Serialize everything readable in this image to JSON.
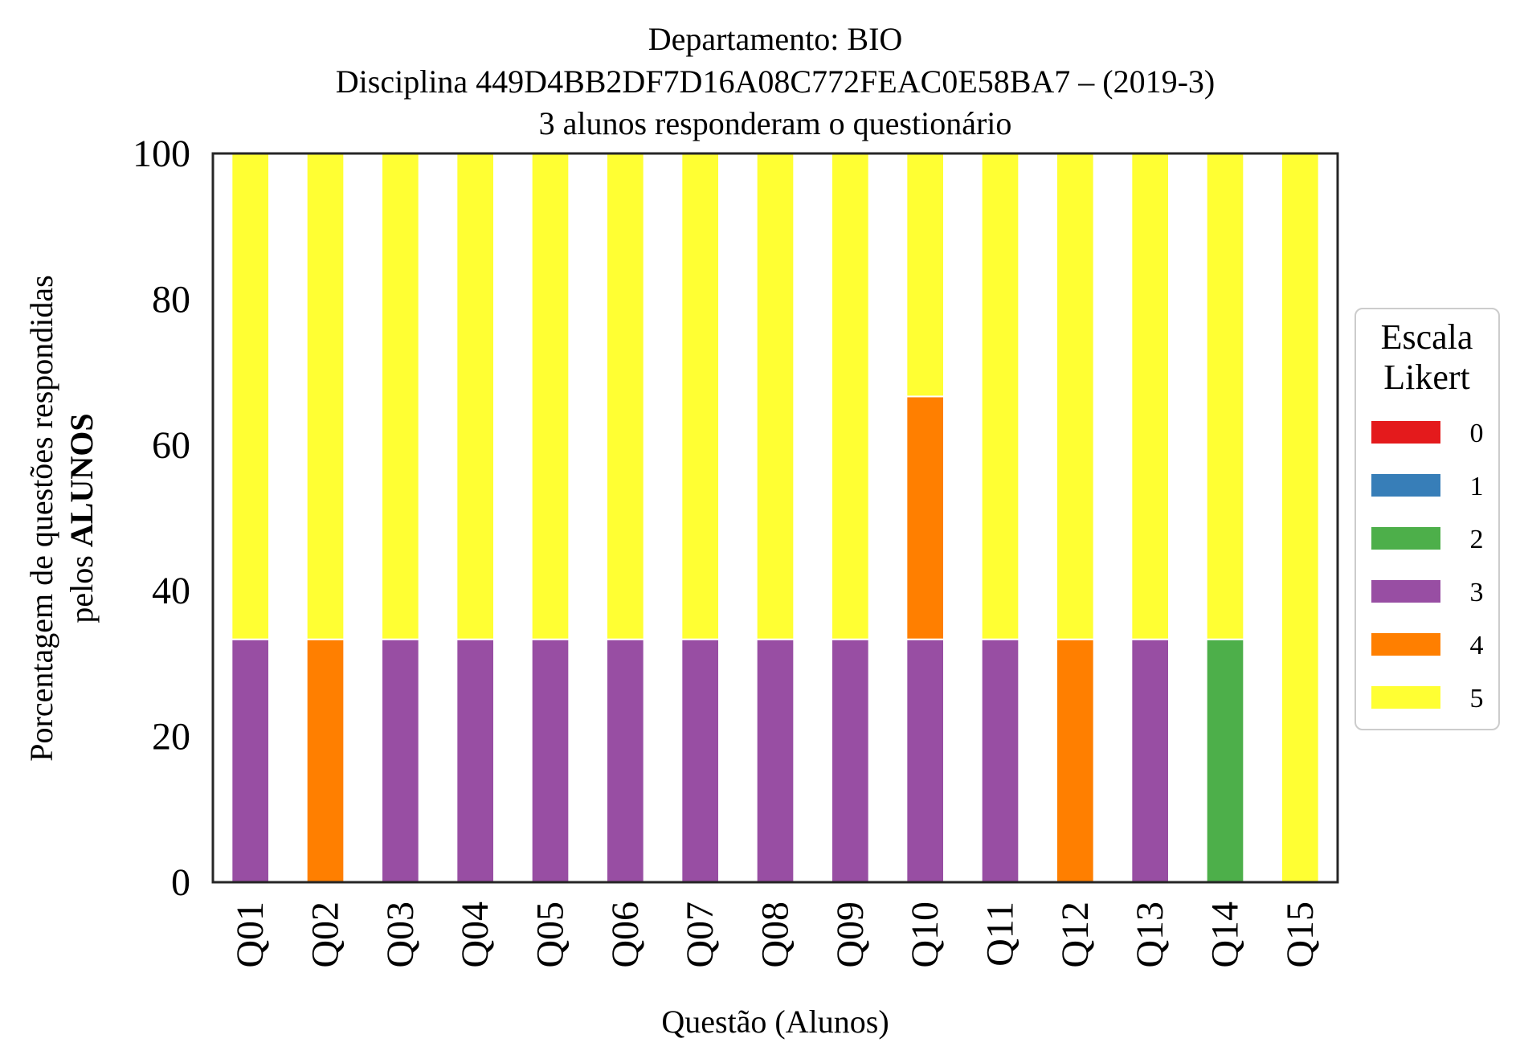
{
  "chart_data": {
    "type": "bar",
    "stacked": true,
    "title": {
      "line1": "Departamento: BIO",
      "line2": "Disciplina 449D4BB2DF7D16A08C772FEAC0E58BA7 – (2019-3)",
      "line3": "3 alunos responderam o questionário"
    },
    "xlabel": "Questão (Alunos)",
    "ylabel": {
      "line1": "Porcentagem de questões respondidas",
      "line2_prefix": "pelos ",
      "line2_bold": "ALUNOS"
    },
    "ylim": [
      0,
      100
    ],
    "yticks": [
      "0",
      "20",
      "40",
      "60",
      "80",
      "100"
    ],
    "categories": [
      "Q01",
      "Q02",
      "Q03",
      "Q04",
      "Q05",
      "Q06",
      "Q07",
      "Q08",
      "Q09",
      "Q10",
      "Q11",
      "Q12",
      "Q13",
      "Q14",
      "Q15"
    ],
    "legend": {
      "title_line1": "Escala",
      "title_line2": "Likert",
      "placement": "right, outside"
    },
    "series": [
      {
        "name": "0",
        "color": "#e41a1c",
        "values": [
          0,
          0,
          0,
          0,
          0,
          0,
          0,
          0,
          0,
          0,
          0,
          0,
          0,
          0,
          0
        ]
      },
      {
        "name": "1",
        "color": "#377eb8",
        "values": [
          0,
          0,
          0,
          0,
          0,
          0,
          0,
          0,
          0,
          0,
          0,
          0,
          0,
          0,
          0
        ]
      },
      {
        "name": "2",
        "color": "#4daf4a",
        "values": [
          0,
          0,
          0,
          0,
          0,
          0,
          0,
          0,
          0,
          0,
          0,
          0,
          0,
          33.33,
          0
        ]
      },
      {
        "name": "3",
        "color": "#984ea3",
        "values": [
          33.33,
          0,
          33.33,
          33.33,
          33.33,
          33.33,
          33.33,
          33.33,
          33.33,
          33.33,
          33.33,
          0,
          33.33,
          0,
          0
        ]
      },
      {
        "name": "4",
        "color": "#ff7f00",
        "values": [
          0,
          33.33,
          0,
          0,
          0,
          0,
          0,
          0,
          0,
          33.33,
          0,
          33.33,
          0,
          0,
          0
        ]
      },
      {
        "name": "5",
        "color": "#ffff33",
        "values": [
          66.67,
          66.67,
          66.67,
          66.67,
          66.67,
          66.67,
          66.67,
          66.67,
          66.67,
          33.33,
          66.67,
          66.67,
          66.67,
          66.67,
          100
        ]
      }
    ]
  }
}
